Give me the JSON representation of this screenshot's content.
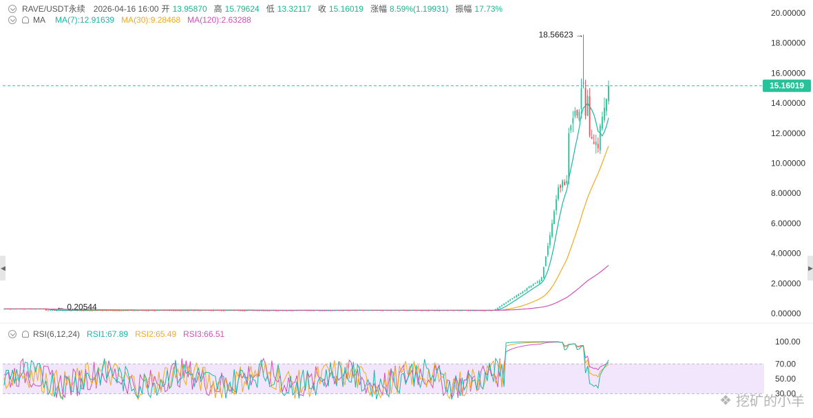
{
  "header": {
    "symbol": "RAVE/USDT永续",
    "datetime": "2026-04-16 16:00",
    "open_label": "开",
    "open": "13.95870",
    "high_label": "高",
    "high": "15.79624",
    "low_label": "低",
    "low": "13.32117",
    "close_label": "收",
    "close": "15.16019",
    "change_label": "涨幅",
    "change": "8.59%(1.19931)",
    "amp_label": "振幅",
    "amp": "17.73%"
  },
  "ma_legend": {
    "title": "MA",
    "ma7": "MA(7):12.91639",
    "ma30": "MA(30):9.28468",
    "ma120": "MA(120):2.63288"
  },
  "rsi_legend": {
    "title": "RSI(6,12,24)",
    "rsi1": "RSI1:67.89",
    "rsi2": "RSI2:65.49",
    "rsi3": "RSI3:66.51"
  },
  "price_axis": [
    "20.00000",
    "18.00000",
    "16.00000",
    "14.00000",
    "12.00000",
    "10.00000",
    "8.00000",
    "6.00000",
    "4.00000",
    "2.00000",
    "0.00000"
  ],
  "rsi_axis": [
    "100.00",
    "70.00",
    "50.00",
    "30.00"
  ],
  "current_price_tag": "15.16019",
  "max_label": "18.56623",
  "min_label": "0.20544",
  "watermark": "挖矿的小羊",
  "colors": {
    "up": "#26c29a",
    "down": "#e0525c",
    "ma7": "#17b7a5",
    "ma30": "#f0a922",
    "ma120": "#d24fb8",
    "rsi_band": "#f1e6fb"
  },
  "chart_data": {
    "type": "candlestick",
    "ylim": [
      0,
      20
    ],
    "last_close": 15.16019,
    "high_max": 18.56623,
    "low_min": 0.20544,
    "rsi_ylim": [
      0,
      100
    ],
    "rsi_band": [
      30,
      70
    ]
  }
}
